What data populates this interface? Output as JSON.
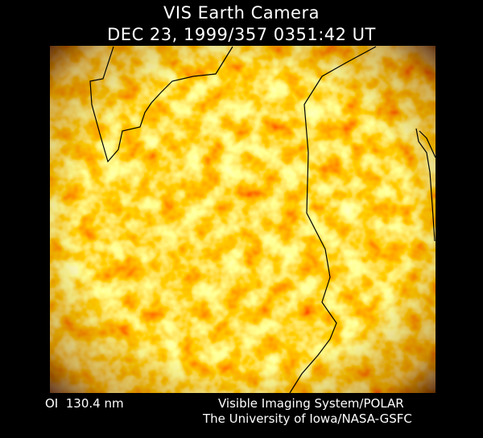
{
  "header": {
    "title": "VIS Earth Camera",
    "timestamp": "DEC 23, 1999/357 0351:42 UT"
  },
  "footer": {
    "filter": "OI  130.4 nm",
    "credit_line_1": "Visible Imaging System/POLAR",
    "credit_line_2": "The University of Iowa/NASA-GSFC"
  }
}
